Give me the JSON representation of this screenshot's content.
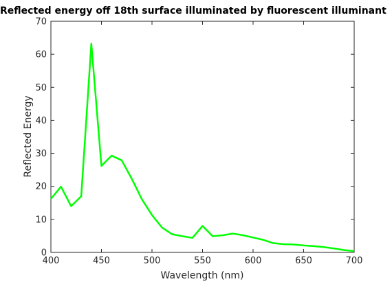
{
  "chart_data": {
    "type": "line",
    "title": "Reflected energy off 18th surface illuminated by fluorescent illuminant",
    "xlabel": "Wavelength (nm)",
    "ylabel": "Reflected Energy",
    "xlim": [
      400,
      700
    ],
    "ylim": [
      0,
      70
    ],
    "x_ticks": [
      400,
      450,
      500,
      550,
      600,
      650,
      700
    ],
    "y_ticks": [
      0,
      10,
      20,
      30,
      40,
      50,
      60,
      70
    ],
    "grid": false,
    "series": [
      {
        "color": "#00ff00",
        "x": [
          400,
          410,
          420,
          430,
          440,
          450,
          460,
          470,
          480,
          490,
          500,
          510,
          520,
          530,
          540,
          550,
          560,
          570,
          580,
          590,
          600,
          610,
          620,
          630,
          640,
          650,
          660,
          670,
          680,
          690,
          700
        ],
        "y": [
          16.2,
          19.9,
          14.0,
          17.0,
          63.2,
          26.2,
          29.3,
          27.9,
          22.3,
          16.1,
          11.3,
          7.5,
          5.5,
          4.9,
          4.4,
          8.0,
          4.9,
          5.2,
          5.7,
          5.2,
          4.5,
          3.8,
          2.8,
          2.5,
          2.4,
          2.1,
          1.9,
          1.6,
          1.2,
          0.7,
          0.4
        ]
      }
    ]
  }
}
